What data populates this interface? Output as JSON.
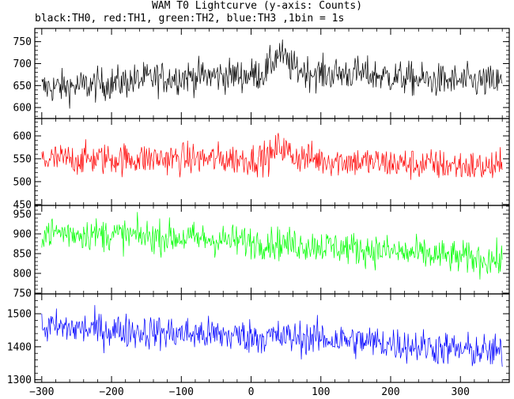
{
  "chart_data": {
    "type": "line",
    "title": "WAM T0 Lightcurve (y-axis: Counts)",
    "subtitle": "black:TH0, red:TH1, green:TH2, blue:TH3 ,1bin = 1s",
    "xlim": [
      -310,
      370
    ],
    "x_ticks": [
      -300,
      -200,
      -100,
      0,
      100,
      200,
      300
    ],
    "x_tick_labels": [
      "−300",
      "−200",
      "−100",
      "0",
      "100",
      "200",
      "300"
    ],
    "grid": false,
    "panels": [
      {
        "series": "TH0",
        "color": "#000000",
        "ylim": [
          575,
          780
        ],
        "y_ticks": [
          600,
          650,
          700,
          750
        ],
        "y_tick_labels": [
          "600",
          "650",
          "700",
          "750"
        ],
        "x": [
          -300,
          -250,
          -200,
          -150,
          -100,
          -50,
          0,
          20,
          40,
          60,
          80,
          100,
          150,
          200,
          250,
          300,
          360
        ],
        "values": [
          645,
          648,
          655,
          665,
          670,
          672,
          674,
          680,
          725,
          690,
          682,
          676,
          678,
          670,
          662,
          660,
          657
        ],
        "noise": 35
      },
      {
        "series": "TH1",
        "color": "#ff0000",
        "ylim": [
          448,
          638
        ],
        "y_ticks": [
          450,
          500,
          550,
          600
        ],
        "y_tick_labels": [
          "450",
          "500",
          "550",
          "600"
        ],
        "x": [
          -300,
          -200,
          -100,
          0,
          30,
          40,
          60,
          100,
          200,
          300,
          360
        ],
        "values": [
          548,
          550,
          550,
          549,
          555,
          580,
          556,
          548,
          540,
          535,
          530
        ],
        "noise": 32
      },
      {
        "series": "TH2",
        "color": "#00ff00",
        "ylim": [
          748,
          972
        ],
        "y_ticks": [
          750,
          800,
          850,
          900,
          950
        ],
        "y_tick_labels": [
          "750",
          "800",
          "850",
          "900",
          "950"
        ],
        "x": [
          -300,
          -200,
          -100,
          0,
          100,
          200,
          300,
          360
        ],
        "values": [
          905,
          898,
          890,
          880,
          870,
          855,
          840,
          832
        ],
        "noise": 38
      },
      {
        "series": "TH3",
        "color": "#0000ff",
        "ylim": [
          1292,
          1560
        ],
        "y_ticks": [
          1300,
          1400,
          1500
        ],
        "y_tick_labels": [
          "1300",
          "1400",
          "1500"
        ],
        "x": [
          -300,
          -200,
          -100,
          0,
          100,
          200,
          300,
          360
        ],
        "values": [
          1460,
          1450,
          1440,
          1432,
          1425,
          1410,
          1390,
          1382
        ],
        "noise": 48
      }
    ]
  }
}
